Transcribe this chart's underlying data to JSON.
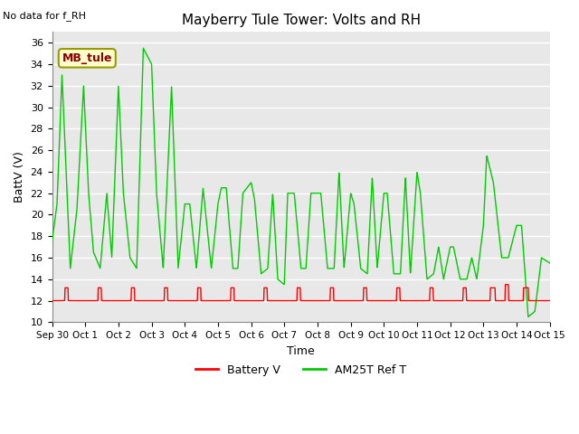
{
  "title": "Mayberry Tule Tower: Volts and RH",
  "no_data_text": "No data for f_RH",
  "ylabel": "BattV (V)",
  "xlabel": "Time",
  "ylim": [
    10,
    37
  ],
  "yticks": [
    10,
    12,
    14,
    16,
    18,
    20,
    22,
    24,
    26,
    28,
    30,
    32,
    34,
    36
  ],
  "station_label": "MB_tule",
  "legend_label_battery": "Battery V",
  "legend_label_am25t": "AM25T Ref T",
  "x_tick_labels": [
    "Sep 30",
    "Oct 1",
    "Oct 2",
    "Oct 3",
    "Oct 4",
    "Oct 5",
    "Oct 6",
    "Oct 7",
    "Oct 8",
    "Oct 9",
    "Oct 10",
    "Oct 11",
    "Oct 12",
    "Oct 13",
    "Oct 14",
    "Oct 15"
  ],
  "am25t_ctrl_x": [
    0.0,
    0.15,
    0.3,
    0.55,
    0.75,
    0.95,
    1.1,
    1.25,
    1.45,
    1.65,
    1.8,
    2.0,
    2.15,
    2.35,
    2.55,
    2.75,
    3.0,
    3.15,
    3.35,
    3.6,
    3.8,
    4.0,
    4.15,
    4.35,
    4.55,
    4.8,
    5.0,
    5.1,
    5.25,
    5.45,
    5.6,
    5.75,
    6.0,
    6.1,
    6.3,
    6.5,
    6.65,
    6.8,
    7.0,
    7.1,
    7.3,
    7.5,
    7.65,
    7.8,
    8.0,
    8.1,
    8.3,
    8.5,
    8.65,
    8.8,
    9.0,
    9.1,
    9.3,
    9.5,
    9.65,
    9.8,
    10.0,
    10.1,
    10.3,
    10.5,
    10.65,
    10.8,
    11.0,
    11.1,
    11.3,
    11.5,
    11.65,
    11.8,
    12.0,
    12.1,
    12.3,
    12.5,
    12.65,
    12.8,
    13.0,
    13.1,
    13.3,
    13.55,
    13.75,
    14.0,
    14.15,
    14.35,
    14.55,
    14.75,
    15.0
  ],
  "am25t_ctrl_y": [
    17.5,
    21.0,
    33.0,
    15.0,
    20.5,
    32.0,
    22.0,
    16.5,
    15.0,
    22.0,
    16.0,
    32.0,
    22.0,
    16.0,
    15.0,
    35.5,
    34.0,
    22.0,
    15.0,
    32.0,
    15.0,
    21.0,
    21.0,
    15.0,
    22.5,
    15.0,
    21.0,
    22.5,
    22.5,
    15.0,
    15.0,
    22.0,
    23.0,
    21.5,
    14.5,
    15.0,
    22.0,
    14.0,
    13.5,
    22.0,
    22.0,
    15.0,
    15.0,
    22.0,
    22.0,
    22.0,
    15.0,
    15.0,
    24.0,
    15.0,
    22.0,
    21.0,
    15.0,
    14.5,
    23.5,
    15.0,
    22.0,
    22.0,
    14.5,
    14.5,
    23.5,
    14.5,
    24.0,
    22.0,
    14.0,
    14.5,
    17.0,
    14.0,
    17.0,
    17.0,
    14.0,
    14.0,
    16.0,
    14.0,
    19.0,
    25.5,
    23.0,
    16.0,
    16.0,
    19.0,
    19.0,
    10.5,
    11.0,
    16.0,
    15.5
  ],
  "batt_ctrl_x": [
    0.0,
    0.38,
    0.39,
    0.48,
    0.49,
    0.58,
    0.59,
    1.38,
    1.39,
    1.48,
    1.49,
    1.58,
    1.59,
    2.38,
    2.39,
    2.48,
    2.49,
    2.58,
    2.59,
    3.38,
    3.39,
    3.48,
    3.49,
    3.58,
    3.59,
    4.38,
    4.39,
    4.48,
    4.49,
    4.58,
    4.59,
    5.38,
    5.39,
    5.48,
    5.49,
    5.58,
    5.59,
    6.38,
    6.39,
    6.48,
    6.49,
    6.58,
    6.59,
    7.38,
    7.39,
    7.48,
    7.49,
    7.58,
    7.59,
    8.38,
    8.39,
    8.48,
    8.49,
    8.58,
    8.59,
    9.38,
    9.39,
    9.48,
    9.49,
    9.58,
    9.59,
    10.38,
    10.39,
    10.48,
    10.49,
    10.58,
    10.59,
    11.38,
    11.39,
    11.48,
    11.49,
    11.58,
    11.59,
    12.38,
    12.39,
    12.48,
    12.49,
    12.58,
    12.59,
    13.2,
    13.21,
    13.35,
    13.36,
    13.5,
    13.51,
    13.65,
    13.66,
    13.75,
    13.76,
    14.2,
    14.21,
    14.35,
    14.36,
    15.0
  ],
  "batt_ctrl_y": [
    12.0,
    12.0,
    13.2,
    13.2,
    12.0,
    12.0,
    12.0,
    12.0,
    13.2,
    13.2,
    12.0,
    12.0,
    12.0,
    12.0,
    13.2,
    13.2,
    12.0,
    12.0,
    12.0,
    12.0,
    13.2,
    13.2,
    12.0,
    12.0,
    12.0,
    12.0,
    13.2,
    13.2,
    12.0,
    12.0,
    12.0,
    12.0,
    13.2,
    13.2,
    12.0,
    12.0,
    12.0,
    12.0,
    13.2,
    13.2,
    12.0,
    12.0,
    12.0,
    12.0,
    13.2,
    13.2,
    12.0,
    12.0,
    12.0,
    12.0,
    13.2,
    13.2,
    12.0,
    12.0,
    12.0,
    12.0,
    13.2,
    13.2,
    12.0,
    12.0,
    12.0,
    12.0,
    13.2,
    13.2,
    12.0,
    12.0,
    12.0,
    12.0,
    13.2,
    13.2,
    12.0,
    12.0,
    12.0,
    12.0,
    13.2,
    13.2,
    12.0,
    12.0,
    12.0,
    12.0,
    13.2,
    13.2,
    12.0,
    12.0,
    12.0,
    12.0,
    13.5,
    13.5,
    12.0,
    12.0,
    13.2,
    13.2,
    12.0,
    12.0
  ]
}
